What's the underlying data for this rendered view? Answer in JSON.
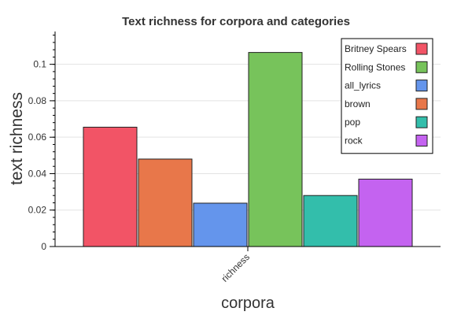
{
  "chart_data": {
    "type": "bar",
    "title": "Text richness for corpora and categories",
    "xlabel": "corpora",
    "ylabel": "text richness",
    "categories": [
      "richness"
    ],
    "ylim": [
      0,
      0.118
    ],
    "yticks": [
      0,
      0.02,
      0.04,
      0.06,
      0.08,
      0.1
    ],
    "ytick_labels": [
      "0",
      "0.02",
      "0.04",
      "0.06",
      "0.08",
      "0.1"
    ],
    "grid": true,
    "legend_position": "top-right",
    "series": [
      {
        "name": "Britney Spears",
        "values": [
          0.0655
        ],
        "color": "#F25466"
      },
      {
        "name": "Rolling Stones",
        "values": [
          0.1065
        ],
        "color": "#77C35B"
      },
      {
        "name": "all_lyrics",
        "values": [
          0.0238
        ],
        "color": "#6495EC"
      },
      {
        "name": "brown",
        "values": [
          0.048
        ],
        "color": "#E8774A"
      },
      {
        "name": "pop",
        "values": [
          0.028
        ],
        "color": "#33BEAB"
      },
      {
        "name": "rock",
        "values": [
          0.037
        ],
        "color": "#C463F0"
      }
    ],
    "bar_order": [
      "Britney Spears",
      "brown",
      "all_lyrics",
      "Rolling Stones",
      "pop",
      "rock"
    ]
  }
}
